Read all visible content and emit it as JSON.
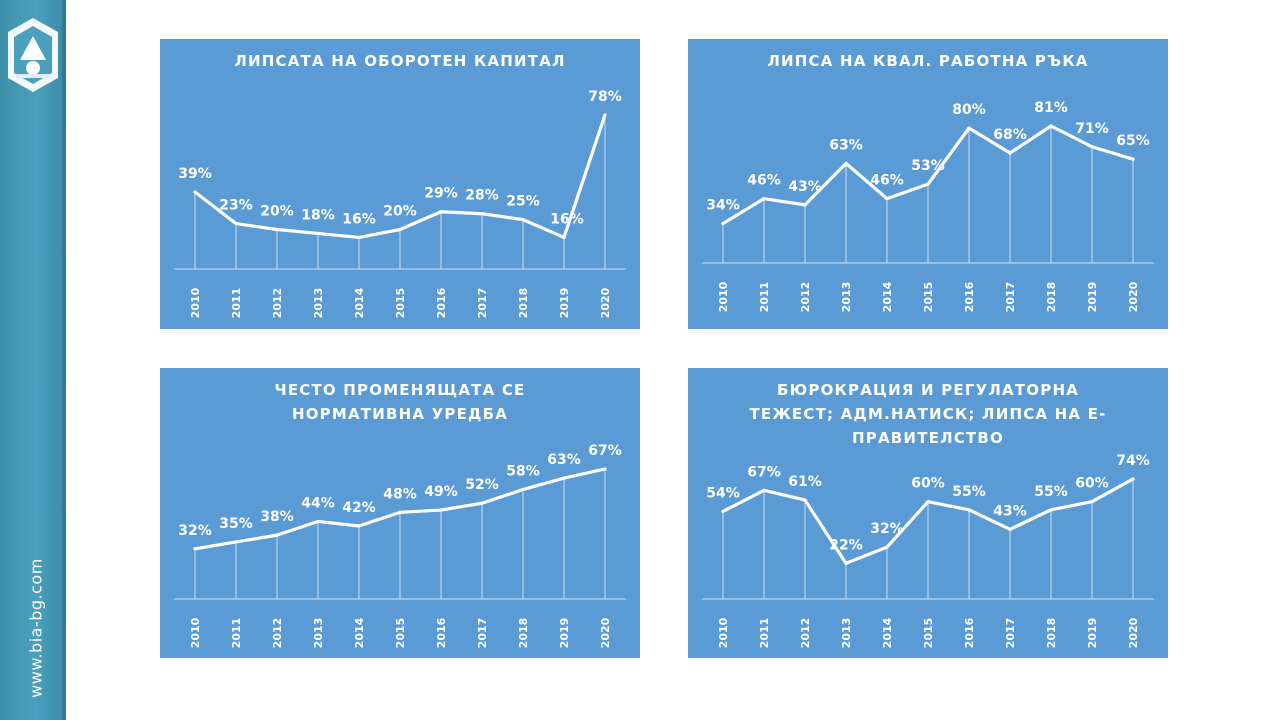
{
  "sidebar": {
    "url_text": "www.bia-bg.com",
    "logo_icon": "bia-logo-icon",
    "color": "#4aa0bd"
  },
  "chart_data": [
    {
      "type": "line",
      "title": "ЛИПСАТА НА ОБОРОТЕН КАПИТАЛ",
      "categories": [
        "2010",
        "2011",
        "2012",
        "2013",
        "2014",
        "2015",
        "2016",
        "2017",
        "2018",
        "2019",
        "2020"
      ],
      "values": [
        39,
        23,
        20,
        18,
        16,
        20,
        29,
        28,
        25,
        16,
        78
      ],
      "labels": [
        "39%",
        "23%",
        "20%",
        "18%",
        "16%",
        "20%",
        "29%",
        "28%",
        "25%",
        "16%",
        "78%"
      ],
      "unit": "%",
      "line_color": "#ffffff",
      "background": "#5b9bd5"
    },
    {
      "type": "line",
      "title": "ЛИПСА НА КВАЛ. РАБОТНА РЪКА",
      "categories": [
        "2010",
        "2011",
        "2012",
        "2013",
        "2014",
        "2015",
        "2016",
        "2017",
        "2018",
        "2019",
        "2020"
      ],
      "values": [
        34,
        46,
        43,
        63,
        46,
        53,
        80,
        68,
        81,
        71,
        65
      ],
      "labels": [
        "34%",
        "46%",
        "43%",
        "63%",
        "46%",
        "53%",
        "80%",
        "68%",
        "81%",
        "71%",
        "65%"
      ],
      "unit": "%",
      "line_color": "#ffffff",
      "background": "#5b9bd5"
    },
    {
      "type": "line",
      "title": "ЧЕСТО ПРОМЕНЯЩАТА СЕ\nНОРМАТИВНА УРЕДБА",
      "categories": [
        "2010",
        "2011",
        "2012",
        "2013",
        "2014",
        "2015",
        "2016",
        "2017",
        "2018",
        "2019",
        "2020"
      ],
      "values": [
        32,
        35,
        38,
        44,
        42,
        48,
        49,
        52,
        58,
        63,
        67
      ],
      "labels": [
        "32%",
        "35%",
        "38%",
        "44%",
        "42%",
        "48%",
        "49%",
        "52%",
        "58%",
        "63%",
        "67%"
      ],
      "unit": "%",
      "line_color": "#ffffff",
      "background": "#5b9bd5"
    },
    {
      "type": "line",
      "title": "БЮРОКРАЦИЯ И РЕГУЛАТОРНА\nТЕЖЕСТ; АДМ.НАТИСК; ЛИПСА НА Е-\nПРАВИТЕЛСТВО",
      "categories": [
        "2010",
        "2011",
        "2012",
        "2013",
        "2014",
        "2015",
        "2016",
        "2017",
        "2018",
        "2019",
        "2020"
      ],
      "values": [
        54,
        67,
        61,
        22,
        32,
        60,
        55,
        43,
        55,
        60,
        74
      ],
      "labels": [
        "54%",
        "67%",
        "61%",
        "22%",
        "32%",
        "60%",
        "55%",
        "43%",
        "55%",
        "60%",
        "74%"
      ],
      "unit": "%",
      "line_color": "#ffffff",
      "background": "#5b9bd5"
    }
  ]
}
